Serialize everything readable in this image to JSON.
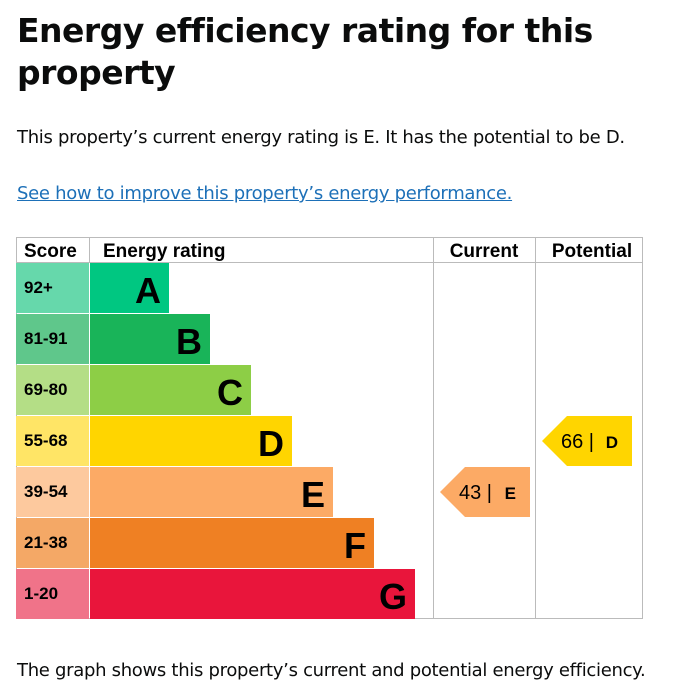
{
  "title": "Energy efficiency rating for this property",
  "intro": "This property’s current energy rating is E. It has the potential to be D.",
  "link": "See how to improve this property’s energy performance.",
  "footer": "The graph shows this property’s current and potential energy efficiency.",
  "chart_data": {
    "type": "table",
    "headers": [
      "Score",
      "Energy rating",
      "Current",
      "Potential"
    ],
    "bands": [
      {
        "score": "92+",
        "letter": "A",
        "color": "#00c781",
        "light": "#66d8ab"
      },
      {
        "score": "81-91",
        "letter": "B",
        "color": "#19b459",
        "light": "#5fc78b"
      },
      {
        "score": "69-80",
        "letter": "C",
        "color": "#8dce46",
        "light": "#b4de86"
      },
      {
        "score": "55-68",
        "letter": "D",
        "color": "#ffd500",
        "light": "#ffe566"
      },
      {
        "score": "39-54",
        "letter": "E",
        "color": "#fcaa65",
        "light": "#fdc99e"
      },
      {
        "score": "21-38",
        "letter": "F",
        "color": "#ef8023",
        "light": "#f4a866"
      },
      {
        "score": "1-20",
        "letter": "G",
        "color": "#e9153b",
        "light": "#f07389"
      }
    ],
    "current": {
      "value": 43,
      "letter": "E",
      "label": "43 |",
      "color": "#fcaa65"
    },
    "potential": {
      "value": 66,
      "letter": "D",
      "label": "66 |",
      "color": "#ffd500"
    }
  }
}
